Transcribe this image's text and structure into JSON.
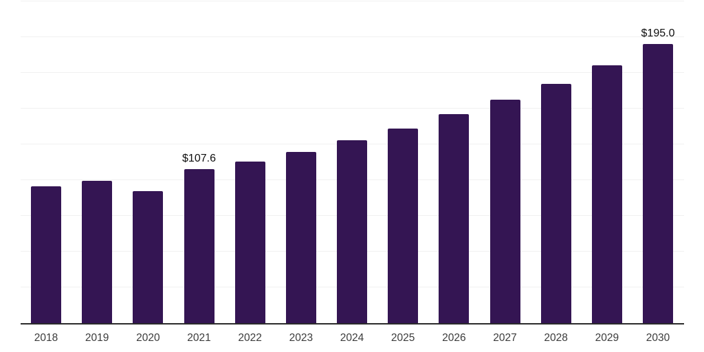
{
  "chart_data": {
    "type": "bar",
    "title": "",
    "xlabel": "",
    "ylabel": "",
    "categories": [
      "2018",
      "2019",
      "2020",
      "2021",
      "2022",
      "2023",
      "2024",
      "2025",
      "2026",
      "2027",
      "2028",
      "2029",
      "2030"
    ],
    "values": [
      95.7,
      99.4,
      92.5,
      107.6,
      113.0,
      119.7,
      127.8,
      136.0,
      146.0,
      156.1,
      167.1,
      180.5,
      195.0
    ],
    "data_labels": [
      {
        "category": "2021",
        "text": "$107.6"
      },
      {
        "category": "2030",
        "text": "$195.0"
      }
    ],
    "ylim": [
      0,
      225
    ],
    "gridline_step": 25,
    "grid": "horizontal-only",
    "legend": "none",
    "colors": {
      "bar": "#341553",
      "axis_line": "#2b2b2b",
      "gridline": "#f1f1f1",
      "tick_label": "#3b3b3b",
      "value_label": "#0d0d0d",
      "background": "#ffffff"
    }
  }
}
